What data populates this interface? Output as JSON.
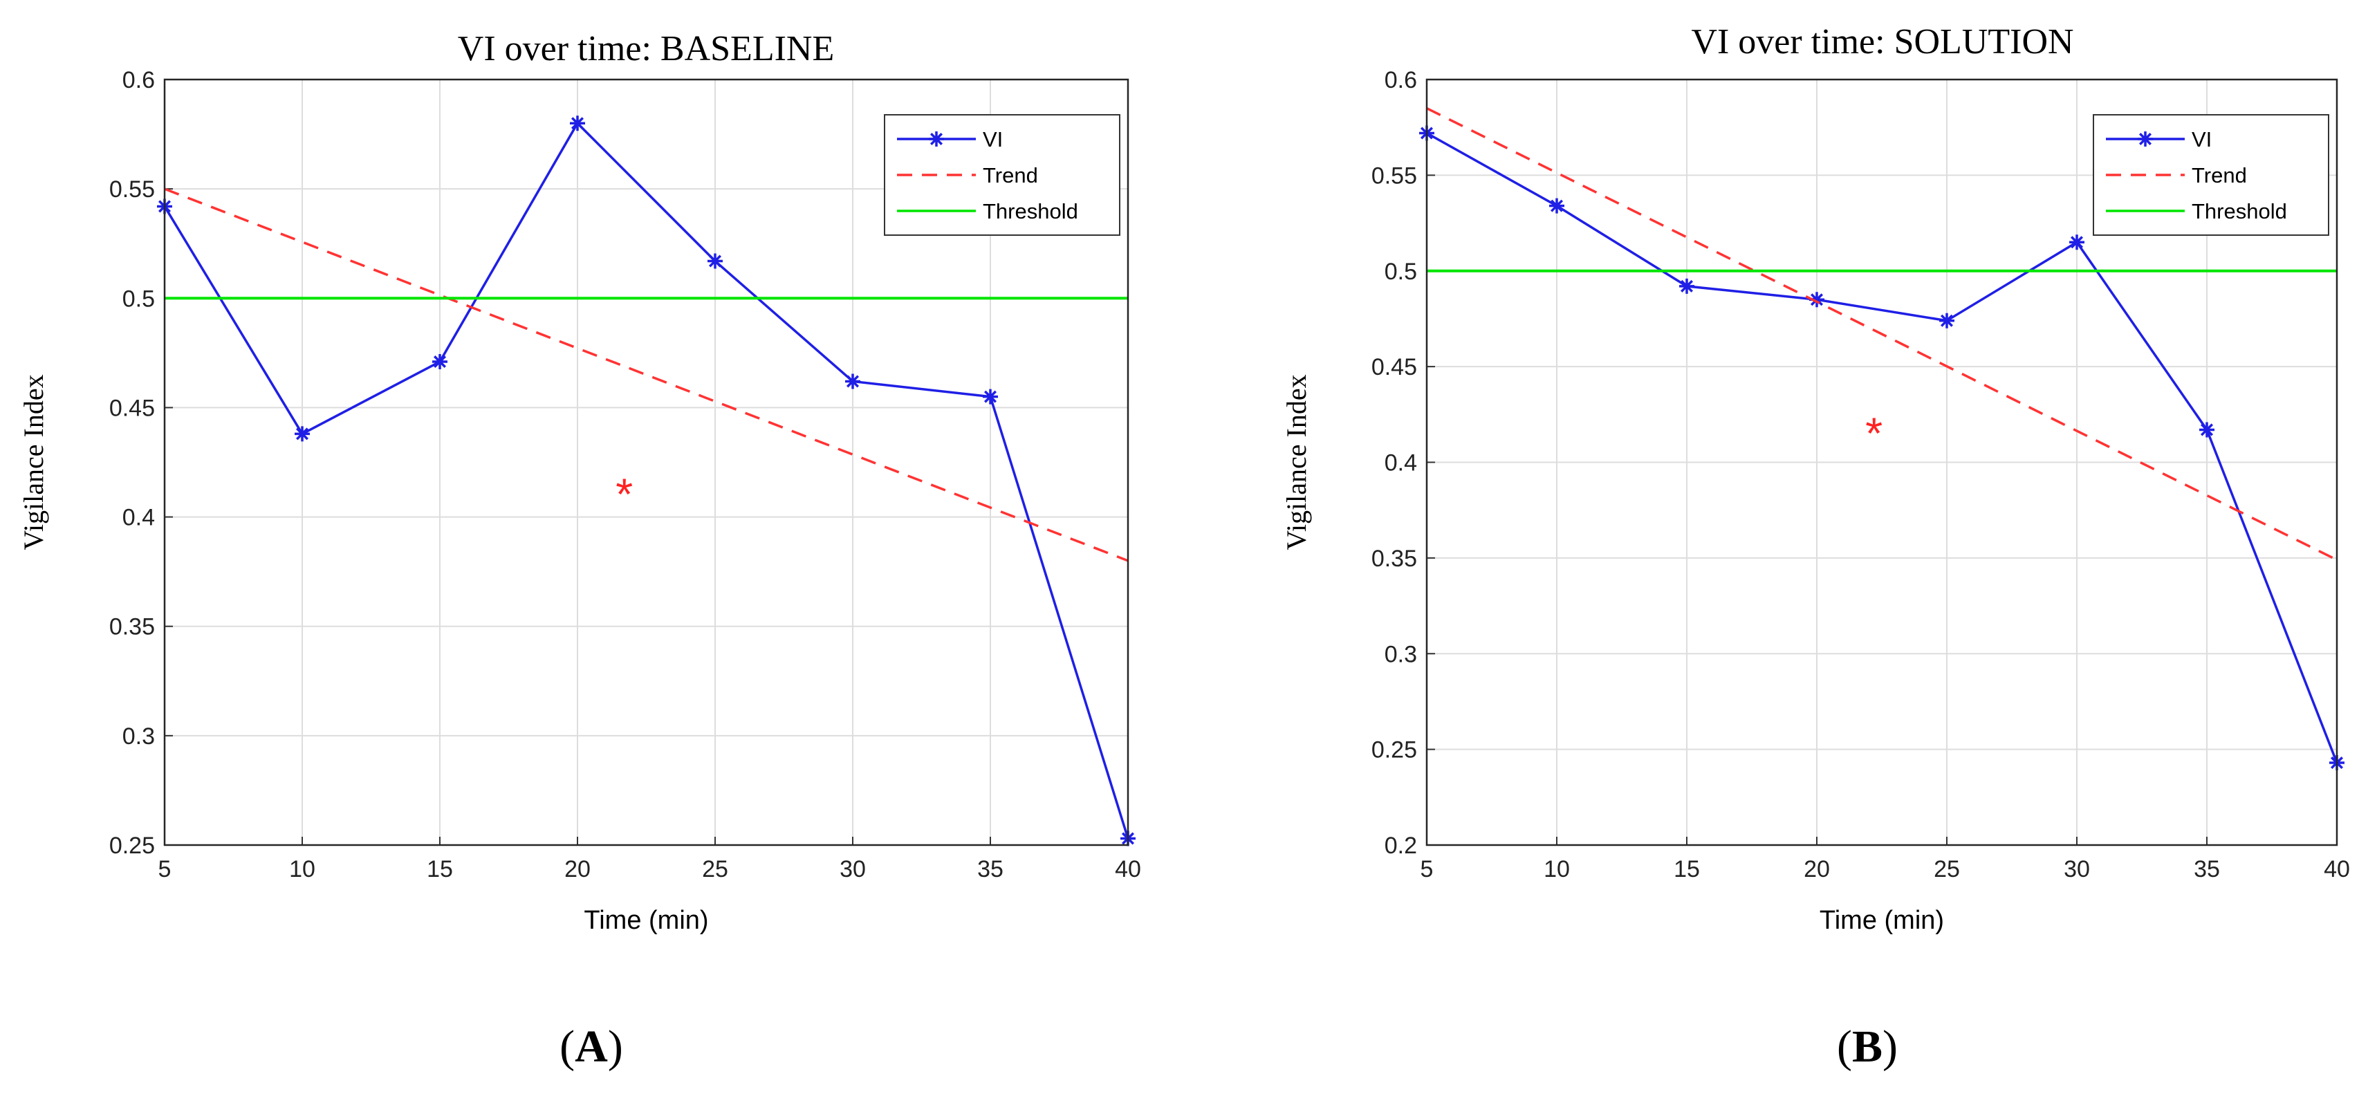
{
  "chart_data": [
    {
      "type": "line",
      "panel_label": "A",
      "title": "VI over time: BASELINE",
      "xlabel": "Time (min)",
      "ylabel": "Vigilance Index",
      "xlim": [
        5,
        40
      ],
      "ylim": [
        0.25,
        0.6
      ],
      "xticks": [
        5,
        10,
        15,
        20,
        25,
        30,
        35,
        40
      ],
      "yticks": [
        0.25,
        0.3,
        0.35,
        0.4,
        0.45,
        0.5,
        0.55,
        0.6
      ],
      "ytick_labels": [
        "0.25",
        "0.3",
        "0.35",
        "0.4",
        "0.45",
        "0.5",
        "0.55",
        "0.6"
      ],
      "grid": true,
      "legend_position": "top-right",
      "series": [
        {
          "name": "VI",
          "style": "solid-star",
          "color": "#1f1fe6",
          "x": [
            5,
            10,
            15,
            20,
            25,
            30,
            35,
            40
          ],
          "values": [
            0.542,
            0.438,
            0.471,
            0.58,
            0.517,
            0.462,
            0.455,
            0.253
          ]
        },
        {
          "name": "Trend",
          "style": "dashed",
          "color": "#ff3333",
          "x": [
            5,
            40
          ],
          "values": [
            0.55,
            0.38
          ]
        },
        {
          "name": "Threshold",
          "style": "solid",
          "color": "#00e600",
          "x": [
            5,
            40
          ],
          "values": [
            0.5,
            0.5
          ]
        }
      ],
      "annotations": [
        {
          "text": "*",
          "x": 21.7,
          "y": 0.413,
          "color": "#ff2222"
        }
      ]
    },
    {
      "type": "line",
      "panel_label": "B",
      "title": "VI over time: SOLUTION",
      "xlabel": "Time (min)",
      "ylabel": "Vigilance Index",
      "xlim": [
        5,
        40
      ],
      "ylim": [
        0.2,
        0.6
      ],
      "xticks": [
        5,
        10,
        15,
        20,
        25,
        30,
        35,
        40
      ],
      "yticks": [
        0.2,
        0.25,
        0.3,
        0.35,
        0.4,
        0.45,
        0.5,
        0.55,
        0.6
      ],
      "ytick_labels": [
        "0.2",
        "0.25",
        "0.3",
        "0.35",
        "0.4",
        "0.45",
        "0.5",
        "0.55",
        "0.6"
      ],
      "grid": true,
      "legend_position": "top-right",
      "series": [
        {
          "name": "VI",
          "style": "solid-star",
          "color": "#1f1fe6",
          "x": [
            5,
            10,
            15,
            20,
            25,
            30,
            35,
            40
          ],
          "values": [
            0.572,
            0.534,
            0.492,
            0.485,
            0.474,
            0.515,
            0.417,
            0.243
          ]
        },
        {
          "name": "Trend",
          "style": "dashed",
          "color": "#ff3333",
          "x": [
            5,
            40
          ],
          "values": [
            0.585,
            0.349
          ]
        },
        {
          "name": "Threshold",
          "style": "solid",
          "color": "#00e600",
          "x": [
            5,
            40
          ],
          "values": [
            0.5,
            0.5
          ]
        }
      ],
      "annotations": [
        {
          "text": "*",
          "x": 22.2,
          "y": 0.418,
          "color": "#ff2222"
        }
      ]
    }
  ]
}
